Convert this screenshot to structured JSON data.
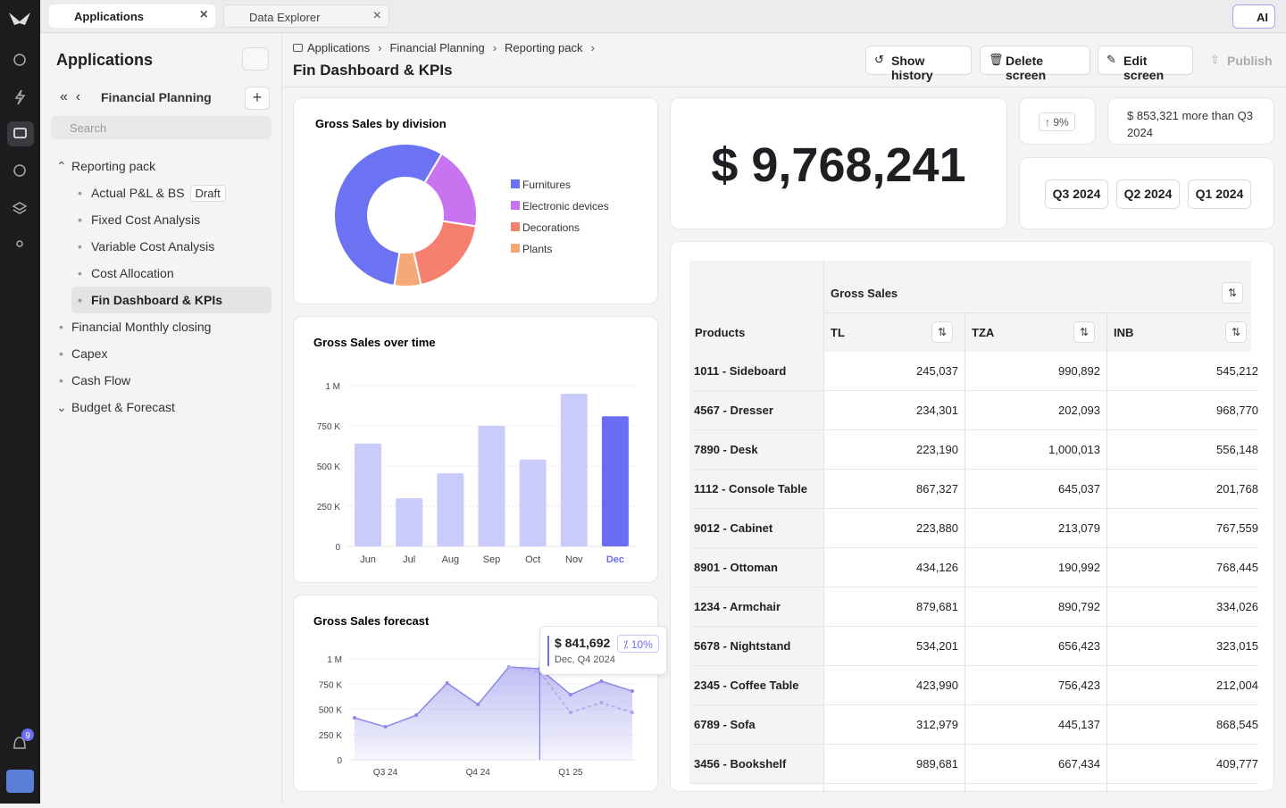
{
  "tabs": [
    "Applications",
    "Data Explorer"
  ],
  "ai_button": "AI",
  "notifications": "9",
  "sidebar": {
    "title": "Applications",
    "section": "Financial Planning",
    "search_placeholder": "Search",
    "tree": [
      {
        "label": "Reporting pack",
        "expanded": true,
        "children": [
          {
            "label": "Actual P&L & BS",
            "badge": "Draft"
          },
          {
            "label": "Fixed Cost Analysis"
          },
          {
            "label": "Variable Cost Analysis"
          },
          {
            "label": "Cost Allocation"
          },
          {
            "label": "Fin Dashboard & KPIs",
            "selected": true
          }
        ]
      },
      {
        "label": "Financial Monthly closing"
      },
      {
        "label": "Capex"
      },
      {
        "label": "Cash Flow"
      },
      {
        "label": "Budget & Forecast",
        "expanded": false
      }
    ]
  },
  "breadcrumb": [
    "Applications",
    "Financial Planning",
    "Reporting pack"
  ],
  "page_title": "Fin Dashboard & KPIs",
  "actions": [
    "Show history",
    "Delete screen",
    "Edit screen",
    "Publish"
  ],
  "kpi": {
    "value": "$ 9,768,241",
    "change": "9%",
    "comparison": "$ 853,321 more than Q3 2024",
    "periods": [
      "Q3 2024",
      "Q2 2024",
      "Q1 2024"
    ]
  },
  "chart_data": [
    {
      "type": "donut",
      "title": "Gross Sales by division",
      "categories": [
        "Furnitures",
        "Electronic devices",
        "Decorations",
        "Plants"
      ],
      "values": [
        56,
        19,
        19,
        6
      ],
      "colors": [
        "#6b73f2",
        "#c873f0",
        "#f6806f",
        "#f7a877"
      ]
    },
    {
      "type": "bar",
      "title": "Gross Sales over time",
      "categories": [
        "Jun",
        "Jul",
        "Aug",
        "Sep",
        "Oct",
        "Nov",
        "Dec"
      ],
      "values": [
        640000,
        300000,
        455000,
        750000,
        540000,
        950000,
        810000
      ],
      "colors": [
        "#c9cbfa",
        "#c9cbfa",
        "#c9cbfa",
        "#c9cbfa",
        "#c9cbfa",
        "#c9cbfa",
        "#6b6ef5"
      ],
      "ylim": [
        0,
        1000000
      ],
      "yticks": [
        0,
        {
          "value": 250000,
          "label": "250 K"
        },
        {
          "value": 500000,
          "label": "500 K"
        },
        {
          "value": 750000,
          "label": "750 K"
        },
        {
          "value": 1000000,
          "label": "1 M"
        }
      ],
      "grid": true
    },
    {
      "type": "area",
      "title": "Gross Sales forecast",
      "categories": [
        null,
        "Q3 24",
        null,
        null,
        "Q4 24",
        null,
        null,
        "Q1 25",
        null,
        null
      ],
      "series": [
        {
          "color": "#8c88ea",
          "values": [
            416000,
            327000,
            442000,
            761000,
            549000,
            920000,
            903000,
            646000,
            779000,
            681000
          ]
        },
        {
          "color": "#aaa7ee",
          "dashed": true,
          "values": [
            null,
            null,
            null,
            null,
            null,
            920000,
            867000,
            469000,
            566000,
            469000
          ]
        }
      ],
      "ylim": [
        0,
        1000000
      ],
      "yticks": [
        0,
        {
          "value": 250000,
          "label": "250 K"
        },
        {
          "value": 500000,
          "label": "500 K"
        },
        {
          "value": 750000,
          "label": "750 K"
        },
        {
          "value": 1000000,
          "label": "1 M"
        }
      ],
      "grid": true,
      "tooltip": {
        "value": "$ 841,692",
        "change": "10%",
        "period": "Dec, Q4 2024"
      }
    }
  ],
  "table": {
    "group_header": "Gross Sales",
    "columns": [
      "Products",
      "TL",
      "TZA",
      "INB"
    ],
    "rows": [
      [
        "1011 - Sideboard",
        "245,037",
        "990,892",
        "545,212"
      ],
      [
        "4567 - Dresser",
        "234,301",
        "202,093",
        "968,770"
      ],
      [
        "7890 - Desk",
        "223,190",
        "1,000,013",
        "556,148"
      ],
      [
        "1112 - Console Table",
        "867,327",
        "645,037",
        "201,768"
      ],
      [
        "9012 - Cabinet",
        "223,880",
        "213,079",
        "767,559"
      ],
      [
        "8901 - Ottoman",
        "434,126",
        "190,992",
        "768,445"
      ],
      [
        "1234 - Armchair",
        "879,681",
        "890,792",
        "334,026"
      ],
      [
        "5678 - Nightstand",
        "534,201",
        "656,423",
        "323,015"
      ],
      [
        "2345 - Coffee Table",
        "423,990",
        "756,423",
        "212,004"
      ],
      [
        "6789 - Sofa",
        "312,979",
        "445,137",
        "868,545"
      ],
      [
        "3456 - Bookshelf",
        "989,681",
        "667,434",
        "409,777"
      ]
    ]
  }
}
